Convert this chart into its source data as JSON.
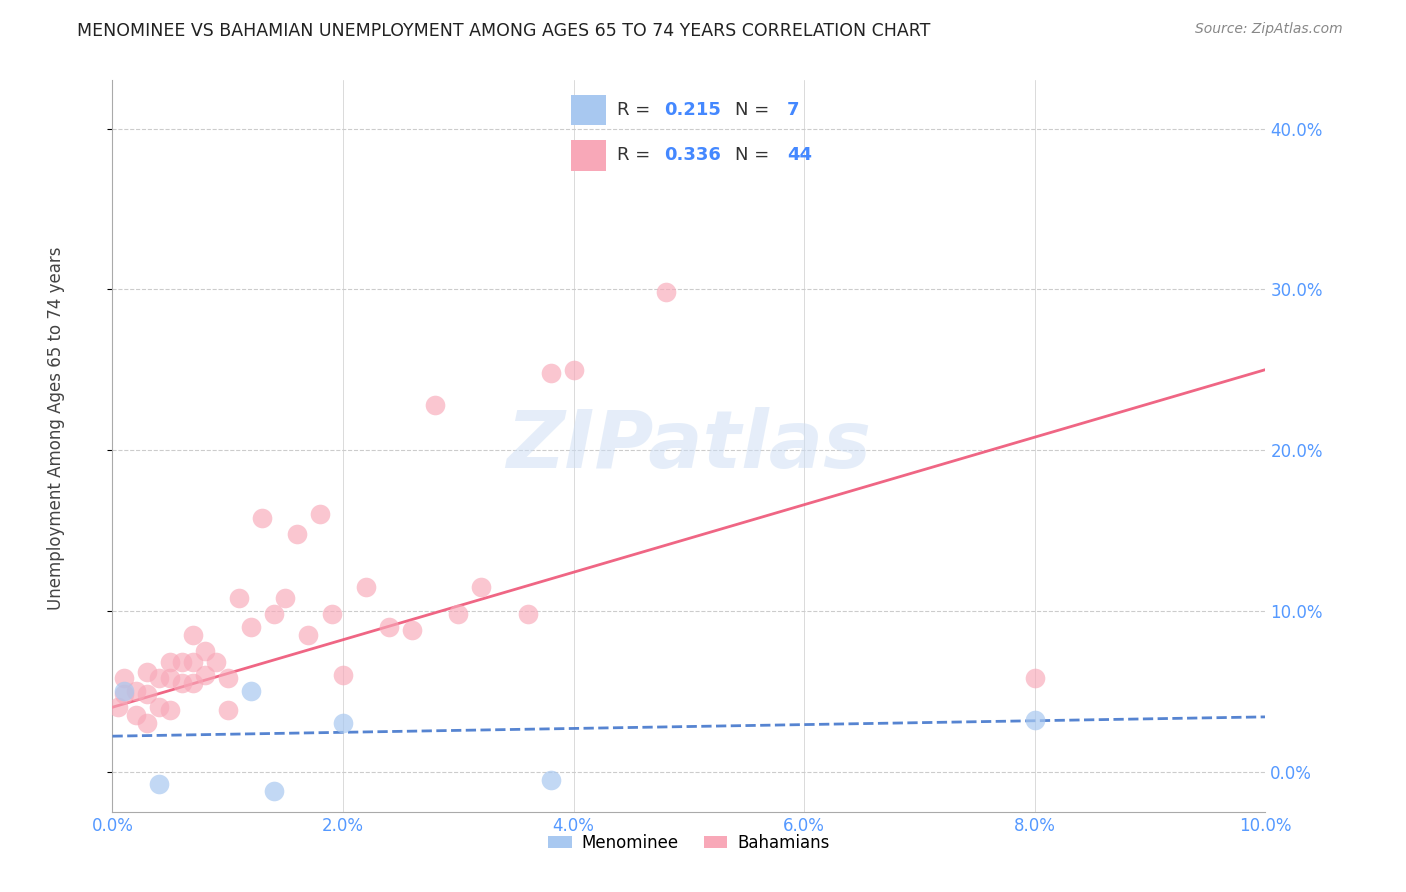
{
  "title": "MENOMINEE VS BAHAMIAN UNEMPLOYMENT AMONG AGES 65 TO 74 YEARS CORRELATION CHART",
  "source": "Source: ZipAtlas.com",
  "ylabel": "Unemployment Among Ages 65 to 74 years",
  "xlim": [
    0.0,
    0.1
  ],
  "ylim": [
    -0.025,
    0.43
  ],
  "xticks": [
    0.0,
    0.02,
    0.04,
    0.06,
    0.08,
    0.1
  ],
  "yticks": [
    0.0,
    0.1,
    0.2,
    0.3,
    0.4
  ],
  "menominee_R": 0.215,
  "menominee_N": 7,
  "bahamian_R": 0.336,
  "bahamian_N": 44,
  "menominee_color": "#a8c8f0",
  "bahamian_color": "#f8a8b8",
  "menominee_line_color": "#4477cc",
  "bahamian_line_color": "#ee5577",
  "menominee_x": [
    0.001,
    0.004,
    0.012,
    0.014,
    0.02,
    0.038,
    0.08
  ],
  "menominee_y": [
    0.05,
    -0.008,
    0.05,
    -0.012,
    0.03,
    -0.005,
    0.032
  ],
  "bahamian_x": [
    0.0005,
    0.001,
    0.001,
    0.002,
    0.002,
    0.003,
    0.003,
    0.003,
    0.004,
    0.004,
    0.005,
    0.005,
    0.005,
    0.006,
    0.006,
    0.007,
    0.007,
    0.007,
    0.008,
    0.008,
    0.009,
    0.01,
    0.01,
    0.011,
    0.012,
    0.013,
    0.014,
    0.015,
    0.016,
    0.017,
    0.018,
    0.019,
    0.02,
    0.022,
    0.024,
    0.026,
    0.028,
    0.03,
    0.032,
    0.036,
    0.038,
    0.04,
    0.048,
    0.08
  ],
  "bahamian_y": [
    0.04,
    0.058,
    0.048,
    0.05,
    0.035,
    0.062,
    0.048,
    0.03,
    0.058,
    0.04,
    0.068,
    0.058,
    0.038,
    0.068,
    0.055,
    0.085,
    0.068,
    0.055,
    0.075,
    0.06,
    0.068,
    0.058,
    0.038,
    0.108,
    0.09,
    0.158,
    0.098,
    0.108,
    0.148,
    0.085,
    0.16,
    0.098,
    0.06,
    0.115,
    0.09,
    0.088,
    0.228,
    0.098,
    0.115,
    0.098,
    0.248,
    0.25,
    0.298,
    0.058
  ],
  "watermark": "ZIPatlas",
  "legend_labels": [
    "Menominee",
    "Bahamians"
  ],
  "background_color": "#ffffff",
  "grid_color": "#cccccc",
  "menominee_line_intercept": 0.022,
  "menominee_line_slope": 0.12,
  "bahamian_line_intercept": 0.04,
  "bahamian_line_slope": 2.1
}
